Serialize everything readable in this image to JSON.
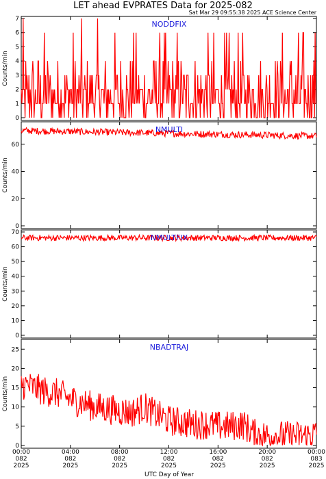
{
  "title": "LET ahead EVPRATES Data for 2025-082",
  "timestamp": "Sat Mar 29 09:55:38 2025 ACE Science Center",
  "colors": {
    "series": "#ff0000",
    "label": "#1a1adb",
    "axis": "#000000"
  },
  "chart_data": [
    {
      "type": "line",
      "label": "NODDFIX",
      "ylabel": "Counts/min",
      "ylim": [
        0,
        7
      ],
      "yticks": [
        "0",
        "1",
        "2",
        "3",
        "4",
        "5",
        "6",
        "7"
      ],
      "xlim": [
        0,
        24
      ],
      "levels": [
        0,
        1,
        2,
        3,
        4,
        5,
        6,
        7
      ],
      "level_weights": [
        0.22,
        0.28,
        0.25,
        0.12,
        0.08,
        0.0,
        0.045,
        0.005
      ]
    },
    {
      "type": "line",
      "label": "NMULTI",
      "ylabel": "Counts/min",
      "ylim": [
        0,
        75
      ],
      "yticks": [
        "0",
        "20",
        "40",
        "60"
      ],
      "xlim": [
        0,
        24
      ],
      "mean_start": 70,
      "mean_end": 66,
      "spread": 2.5
    },
    {
      "type": "line",
      "label": "NMULTFIX",
      "ylabel": "Counts/min",
      "ylim": [
        0,
        70
      ],
      "yticks": [
        "0",
        "10",
        "20",
        "30",
        "40",
        "50",
        "60",
        "70"
      ],
      "xlim": [
        0,
        24
      ],
      "mean_start": 66,
      "mean_end": 66,
      "spread": 2.0
    },
    {
      "type": "line",
      "label": "NBADTRAJ",
      "ylabel": "Counts/min",
      "ylim": [
        0,
        27
      ],
      "yticks": [
        "0",
        "5",
        "10",
        "15",
        "20",
        "25"
      ],
      "xlim": [
        0,
        24
      ],
      "x": [
        0,
        1,
        2,
        3,
        4,
        5,
        6,
        7,
        8,
        9,
        10,
        11,
        12,
        13,
        14,
        15,
        16,
        17,
        18,
        19,
        20,
        21,
        22,
        23,
        24
      ],
      "trend": [
        16,
        15,
        14,
        13.5,
        12,
        11,
        10,
        9.5,
        9,
        8.5,
        10,
        8,
        6.5,
        6,
        5.5,
        5.5,
        5,
        5,
        5.5,
        3,
        2.5,
        2.5,
        2.5,
        2.5,
        3
      ],
      "spread": 4
    }
  ],
  "xaxis": {
    "title": "UTC Day of Year",
    "ticks": [
      {
        "time": "00:00",
        "day": "082",
        "year": "2025"
      },
      {
        "time": "04:00",
        "day": "082",
        "year": "2025"
      },
      {
        "time": "08:00",
        "day": "082",
        "year": "2025"
      },
      {
        "time": "12:00",
        "day": "082",
        "year": "2025"
      },
      {
        "time": "16:00",
        "day": "082",
        "year": "2025"
      },
      {
        "time": "20:00",
        "day": "082",
        "year": "2025"
      },
      {
        "time": "00:00",
        "day": "083",
        "year": "2025"
      }
    ]
  }
}
